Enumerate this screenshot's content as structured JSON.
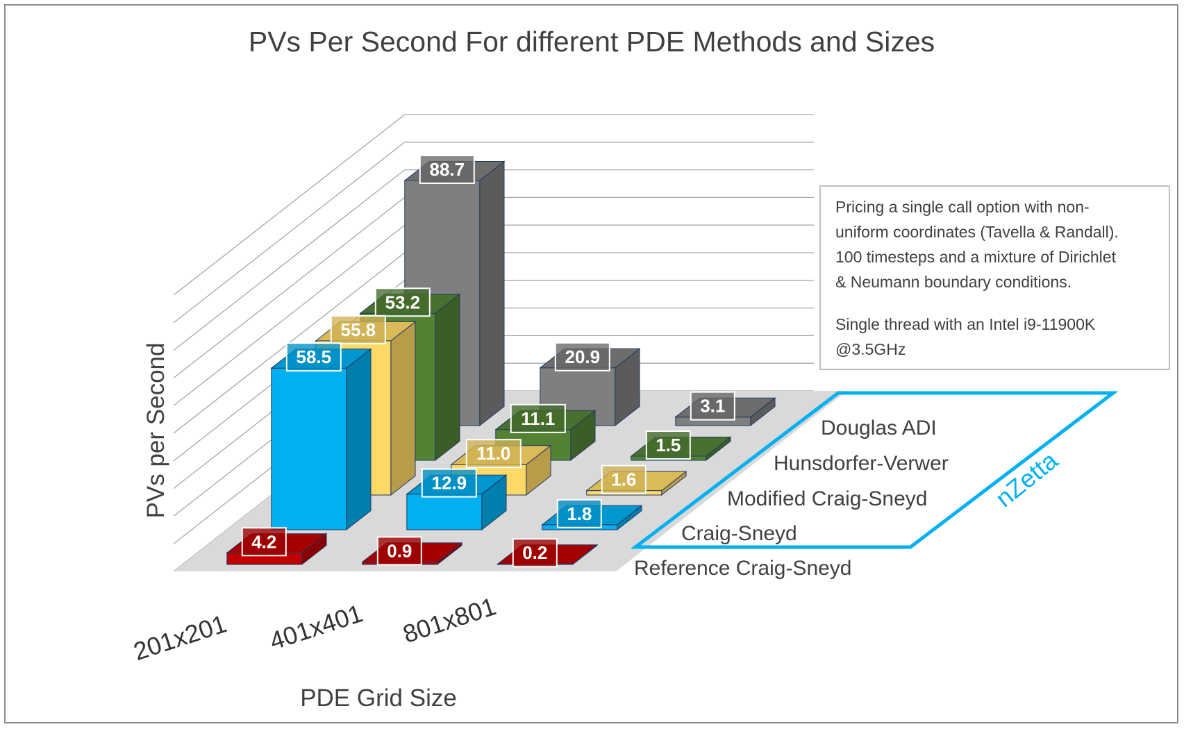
{
  "chart_data": {
    "type": "bar",
    "subtype": "3d-column",
    "title": "PVs Per Second For different PDE Methods and Sizes",
    "xlabel": "PDE Grid Size",
    "ylabel": "PVs per Second",
    "categories": [
      "201x201",
      "401x401",
      "801x801"
    ],
    "ylim": [
      0,
      100
    ],
    "grid": true,
    "series": [
      {
        "name": "Reference Craig-Sneyd",
        "values": [
          4.2,
          0.9,
          0.2
        ],
        "color": "#c00000"
      },
      {
        "name": "Craig-Sneyd",
        "values": [
          58.5,
          12.9,
          1.8
        ],
        "color": "#00b0f0"
      },
      {
        "name": "Modified Craig-Sneyd",
        "values": [
          55.8,
          11.0,
          1.6
        ],
        "color": "#ffd966"
      },
      {
        "name": "Hunsdorfer-Verwer",
        "values": [
          53.2,
          11.1,
          1.5
        ],
        "color": "#548235"
      },
      {
        "name": "Douglas ADI",
        "values": [
          88.7,
          20.9,
          3.1
        ],
        "color": "#7f7f7f"
      }
    ],
    "data_labels": [
      [
        "4.2",
        "0.9",
        "0.2"
      ],
      [
        "58.5",
        "12.9",
        "1.8"
      ],
      [
        "55.8",
        "11.0",
        "1.6"
      ],
      [
        "53.2",
        "11.1",
        "1.5"
      ],
      [
        "88.7",
        "20.9",
        "3.1"
      ]
    ]
  },
  "annotation": {
    "lines": [
      "Pricing a single call option with non-",
      "uniform coordinates (Tavella & Randall).",
      "100 timesteps and a mixture of Dirichlet",
      "& Neumann boundary conditions.",
      "",
      "Single thread with an Intel i9-11900K",
      "@3.5GHz"
    ]
  },
  "brand": {
    "text": "nZetta",
    "color": "#00b0f0"
  },
  "colors": {
    "frame": "#8c8c8c",
    "floor": "#d9d9d9",
    "gridline": "#a6a6a6",
    "accent": "#00b0f0"
  }
}
